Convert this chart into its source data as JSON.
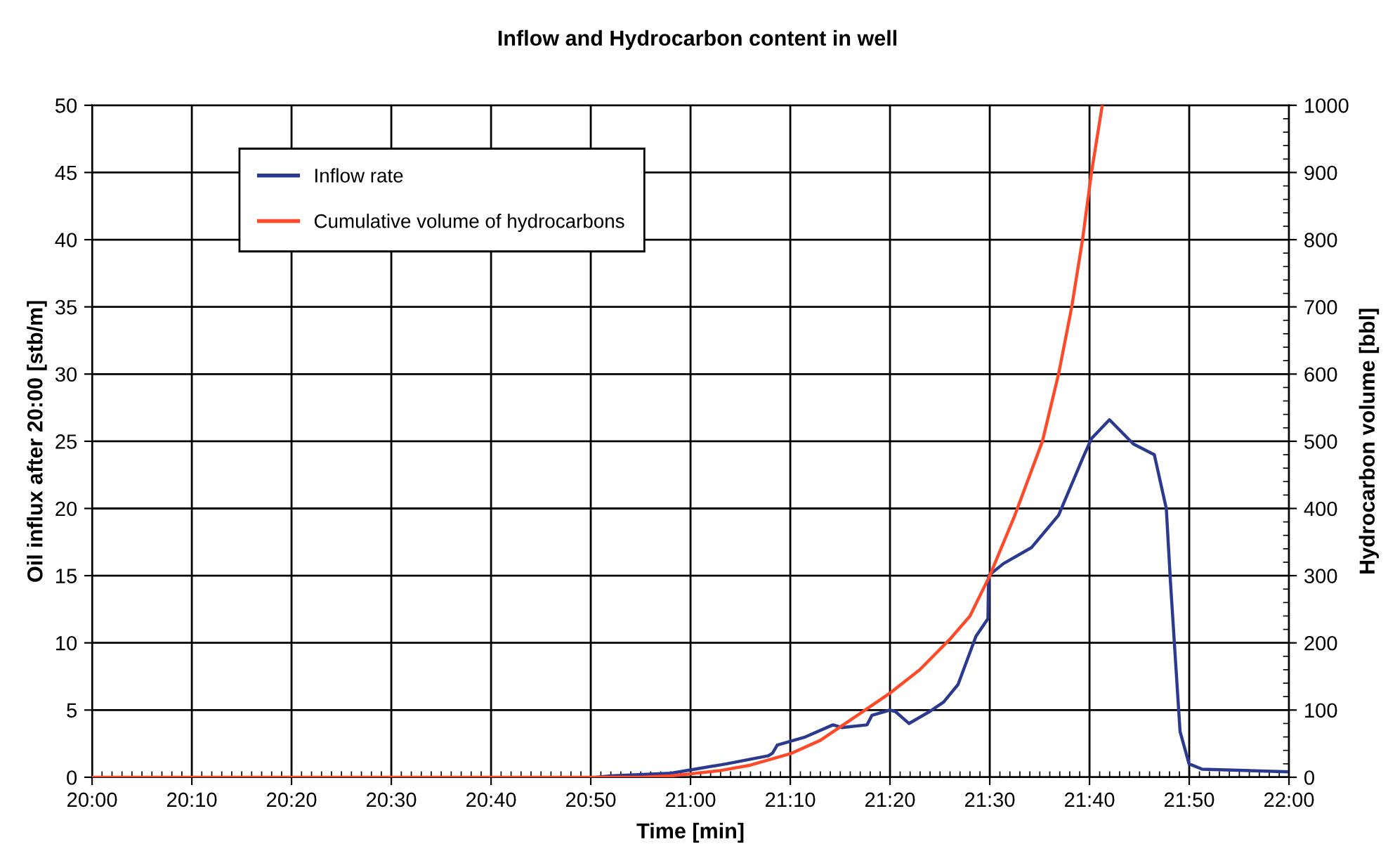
{
  "chart_data": {
    "type": "line",
    "title": "Inflow and Hydrocarbon content in well",
    "xlabel": "Time [min]",
    "ylabel": "Oil influx after 20:00 [stb/m]",
    "y2label": "Hydrocarbon volume [bbl]",
    "xlim": [
      20,
      22
    ],
    "xticks": [
      {
        "value": 20,
        "label": "20:00"
      },
      {
        "value": 20.1667,
        "label": "20:10"
      },
      {
        "value": 20.3333,
        "label": "20:20"
      },
      {
        "value": 20.5,
        "label": "20:30"
      },
      {
        "value": 20.6667,
        "label": "20:40"
      },
      {
        "value": 20.8333,
        "label": "20:50"
      },
      {
        "value": 21,
        "label": "21:00"
      },
      {
        "value": 21.1667,
        "label": "21:10"
      },
      {
        "value": 21.3333,
        "label": "21:20"
      },
      {
        "value": 21.5,
        "label": "21:30"
      },
      {
        "value": 21.6667,
        "label": "21:40"
      },
      {
        "value": 21.8333,
        "label": "21:50"
      },
      {
        "value": 22,
        "label": "22:00"
      }
    ],
    "ylim": [
      0,
      50
    ],
    "yticks": [
      0,
      5,
      10,
      15,
      20,
      25,
      30,
      35,
      40,
      45,
      50
    ],
    "y2lim": [
      0,
      1000
    ],
    "y2ticks": [
      0,
      100,
      200,
      300,
      400,
      500,
      600,
      700,
      800,
      900,
      1000
    ],
    "grid": true,
    "legend": "top left",
    "marker": "none",
    "line_style": "solid",
    "series": [
      {
        "name": "Inflow rate",
        "color": "#2b3a8f",
        "x": [
          20.842,
          20.867,
          20.967,
          21.007,
          21.06,
          21.13,
          21.137,
          21.145,
          21.192,
          21.238,
          21.253,
          21.295,
          21.303,
          21.333,
          21.342,
          21.365,
          21.4,
          21.423,
          21.447,
          21.477,
          21.497,
          21.498,
          21.523,
          21.57,
          21.615,
          21.655,
          21.67,
          21.7,
          21.74,
          21.775,
          21.795,
          21.802,
          21.818,
          21.833,
          21.855,
          22
        ],
        "values": [
          0,
          0.1,
          0.3,
          0.6,
          1.0,
          1.6,
          1.8,
          2.4,
          3.0,
          3.9,
          3.7,
          3.9,
          4.6,
          5.0,
          4.9,
          4.0,
          4.9,
          5.6,
          6.9,
          10.5,
          11.8,
          15.0,
          15.9,
          17.1,
          19.5,
          23.7,
          25.2,
          26.6,
          24.8,
          24.0,
          20.0,
          14.5,
          3.4,
          1.0,
          0.6,
          0.4
        ]
      },
      {
        "name": "Cumulative volume of hydrocarbons",
        "color": "#ff4a2a",
        "axis": "y2",
        "x": [
          20,
          20.917,
          20.967,
          21,
          21.05,
          21.1,
          21.167,
          21.217,
          21.267,
          21.333,
          21.383,
          21.433,
          21.467,
          21.5,
          21.542,
          21.588,
          21.615,
          21.637,
          21.655,
          21.67,
          21.688
        ],
        "values": [
          0,
          0,
          2,
          5,
          10,
          18,
          35,
          55,
          85,
          125,
          160,
          205,
          240,
          300,
          390,
          500,
          600,
          700,
          800,
          900,
          1000
        ]
      }
    ]
  }
}
